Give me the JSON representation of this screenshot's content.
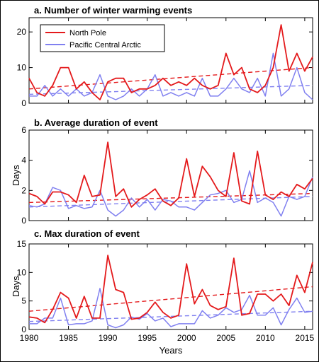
{
  "chart_data": [
    {
      "type": "line",
      "title": "a. Number of winter warming events",
      "ylabel": "",
      "xlabel": "",
      "xlim": [
        1980,
        2016
      ],
      "ylim": [
        0,
        24
      ],
      "yticks": [
        0,
        10,
        20
      ],
      "legend": {
        "placement": "top-left",
        "entries": [
          "North Pole",
          "Pacific Central Arctic"
        ]
      },
      "series": [
        {
          "name": "North Pole",
          "color": "#e41a1c",
          "x": [
            1980,
            1981,
            1982,
            1983,
            1984,
            1985,
            1986,
            1987,
            1988,
            1989,
            1990,
            1991,
            1992,
            1993,
            1994,
            1995,
            1996,
            1997,
            1998,
            1999,
            2000,
            2001,
            2002,
            2003,
            2004,
            2005,
            2006,
            2007,
            2008,
            2009,
            2010,
            2011,
            2012,
            2013,
            2014,
            2015,
            2016
          ],
          "values": [
            7,
            3,
            2,
            5,
            10,
            10,
            4,
            6,
            3,
            1,
            6,
            7,
            7,
            3,
            4,
            4,
            5,
            7,
            5,
            6,
            5,
            7,
            5,
            4,
            5,
            14,
            8,
            10,
            4,
            3,
            5,
            10,
            22,
            9,
            14,
            9,
            13
          ],
          "trend": [
            4.0,
            10.0
          ]
        },
        {
          "name": "Pacific Central Arctic",
          "color": "#8080f0",
          "x": [
            1980,
            1981,
            1982,
            1983,
            1984,
            1985,
            1986,
            1987,
            1988,
            1989,
            1990,
            1991,
            1992,
            1993,
            1994,
            1995,
            1996,
            1997,
            1998,
            1999,
            2000,
            2001,
            2002,
            2003,
            2004,
            2005,
            2006,
            2007,
            2008,
            2009,
            2010,
            2011,
            2012,
            2013,
            2014,
            2015,
            2016
          ],
          "values": [
            2,
            2,
            5,
            2,
            4,
            2,
            4,
            2,
            3,
            8,
            2,
            1,
            2,
            4,
            2,
            4,
            8,
            2,
            3,
            2,
            3,
            2,
            7,
            2,
            2,
            4,
            7,
            4,
            3,
            7,
            2,
            14,
            2,
            4,
            10,
            3,
            1
          ],
          "trend": [
            2.5,
            5.0
          ]
        }
      ]
    },
    {
      "type": "line",
      "title": "b. Average duration of event",
      "ylabel": "Days",
      "xlabel": "",
      "xlim": [
        1980,
        2016
      ],
      "ylim": [
        0,
        6
      ],
      "yticks": [
        0,
        2,
        4,
        6
      ],
      "series": [
        {
          "name": "North Pole",
          "color": "#e41a1c",
          "x": [
            1980,
            1981,
            1982,
            1983,
            1984,
            1985,
            1986,
            1987,
            1988,
            1989,
            1990,
            1991,
            1992,
            1993,
            1994,
            1995,
            1996,
            1997,
            1998,
            1999,
            2000,
            2001,
            2002,
            2003,
            2004,
            2005,
            2006,
            2007,
            2008,
            2009,
            2010,
            2011,
            2012,
            2013,
            2014,
            2015,
            2016
          ],
          "values": [
            1.8,
            1.6,
            1.1,
            1.9,
            1.9,
            1.7,
            1.2,
            3.0,
            1.6,
            1.7,
            5.2,
            1.6,
            2.1,
            0.9,
            1.4,
            1.7,
            2.1,
            1.3,
            1.0,
            1.5,
            4.1,
            1.6,
            3.6,
            2.9,
            2.0,
            1.6,
            4.5,
            1.3,
            1.1,
            4.6,
            1.7,
            1.4,
            1.9,
            1.6,
            2.4,
            2.1,
            2.8
          ],
          "trend": [
            1.2,
            1.8
          ]
        },
        {
          "name": "Pacific Central Arctic",
          "color": "#8080f0",
          "x": [
            1980,
            1981,
            1982,
            1983,
            1984,
            1985,
            1986,
            1987,
            1988,
            1989,
            1990,
            1991,
            1992,
            1993,
            1994,
            1995,
            1996,
            1997,
            1998,
            1999,
            2000,
            2001,
            2002,
            2003,
            2004,
            2005,
            2006,
            2007,
            2008,
            2009,
            2010,
            2011,
            2012,
            2013,
            2014,
            2015,
            2016
          ],
          "values": [
            1.0,
            0.9,
            1.1,
            2.2,
            2.0,
            0.8,
            1.0,
            0.8,
            0.9,
            2.0,
            0.7,
            0.3,
            0.7,
            1.5,
            0.9,
            1.4,
            0.7,
            1.4,
            1.3,
            0.9,
            0.9,
            0.7,
            1.2,
            1.7,
            1.8,
            2.0,
            1.2,
            1.4,
            3.3,
            1.2,
            1.5,
            1.2,
            0.3,
            1.6,
            1.4,
            1.6,
            2.9
          ],
          "trend": [
            0.9,
            1.6
          ]
        }
      ]
    },
    {
      "type": "line",
      "title": "c. Max duration of event",
      "ylabel": "Days",
      "xlabel": "Years",
      "xlim": [
        1980,
        2016
      ],
      "ylim": [
        0,
        15
      ],
      "yticks": [
        0,
        5,
        10,
        15
      ],
      "xticks": [
        1980,
        1985,
        1990,
        1995,
        2000,
        2005,
        2010,
        2015
      ],
      "series": [
        {
          "name": "North Pole",
          "color": "#e41a1c",
          "x": [
            1980,
            1981,
            1982,
            1983,
            1984,
            1985,
            1986,
            1987,
            1988,
            1989,
            1990,
            1991,
            1992,
            1993,
            1994,
            1995,
            1996,
            1997,
            1998,
            1999,
            2000,
            2001,
            2002,
            2003,
            2004,
            2005,
            2006,
            2007,
            2008,
            2009,
            2010,
            2011,
            2012,
            2013,
            2014,
            2015,
            2016
          ],
          "values": [
            2.2,
            2.0,
            1.2,
            3.5,
            6.5,
            5.5,
            2.0,
            5.8,
            2.0,
            2.0,
            13.0,
            7.0,
            6.5,
            1.8,
            2.0,
            3.0,
            4.8,
            3.0,
            2.0,
            2.5,
            11.5,
            4.5,
            7.0,
            4.2,
            3.5,
            4.0,
            12.5,
            2.5,
            2.8,
            6.2,
            6.2,
            5.0,
            6.2,
            4.2,
            9.5,
            6.5,
            11.8
          ],
          "trend": [
            3.2,
            7.5
          ]
        },
        {
          "name": "Pacific Central Arctic",
          "color": "#8080f0",
          "x": [
            1980,
            1981,
            1982,
            1983,
            1984,
            1985,
            1986,
            1987,
            1988,
            1989,
            1990,
            1991,
            1992,
            1993,
            1994,
            1995,
            1996,
            1997,
            1998,
            1999,
            2000,
            2001,
            2002,
            2003,
            2004,
            2005,
            2006,
            2007,
            2008,
            2009,
            2010,
            2011,
            2012,
            2013,
            2014,
            2015,
            2016
          ],
          "values": [
            1.0,
            1.0,
            2.0,
            2.0,
            5.5,
            0.8,
            1.0,
            1.0,
            1.5,
            7.2,
            0.8,
            0.3,
            0.8,
            2.2,
            1.8,
            2.8,
            1.5,
            2.0,
            0.5,
            1.0,
            1.0,
            1.0,
            3.3,
            2.0,
            2.5,
            3.8,
            3.0,
            3.5,
            6.0,
            2.5,
            2.5,
            3.8,
            0.8,
            3.5,
            5.5,
            3.0,
            3.2
          ],
          "trend": [
            1.4,
            3.2
          ]
        }
      ]
    }
  ]
}
